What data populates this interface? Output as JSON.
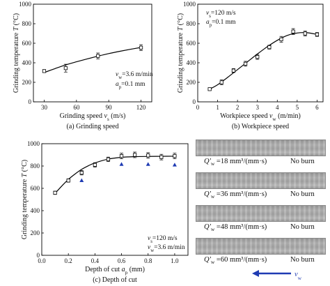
{
  "chart_data": [
    {
      "type": "line",
      "panel": "a",
      "caption": "(a) Grinding speed",
      "xlabel": "Grinding speed v_s (m/s)",
      "ylabel": "Grinding temperature T (°C)",
      "xlim": [
        20,
        130
      ],
      "ylim": [
        0,
        1000
      ],
      "xticks": [
        "30",
        "60",
        "90",
        "120"
      ],
      "yticks": [
        "0",
        "200",
        "400",
        "600",
        "800",
        "1000"
      ],
      "series": [
        {
          "x": [
            30,
            50,
            80,
            120
          ],
          "y": [
            315,
            345,
            470,
            555
          ],
          "err": [
            15,
            40,
            30,
            30
          ]
        }
      ],
      "fit": {
        "x": [
          30,
          40,
          50,
          60,
          70,
          80,
          90,
          100,
          110,
          120
        ],
        "y": [
          300,
          340,
          378,
          410,
          440,
          468,
          494,
          517,
          538,
          557
        ]
      },
      "annotation": [
        "v_w=3.6 m/min",
        "a_p=0.1 mm"
      ]
    },
    {
      "type": "line",
      "panel": "b",
      "caption": "(b) Workpiece speed",
      "xlabel": "Workpiece speed v_w (m/min)",
      "ylabel": "Grinding temperature T (°C)",
      "xlim": [
        0,
        6.3
      ],
      "ylim": [
        0,
        1000
      ],
      "xticks": [
        "0",
        "1",
        "2",
        "3",
        "4",
        "5",
        "6"
      ],
      "yticks": [
        "0",
        "200",
        "400",
        "600",
        "800",
        "1000"
      ],
      "series": [
        {
          "x": [
            0.6,
            1.2,
            1.8,
            2.4,
            3.0,
            3.6,
            4.2,
            4.8,
            5.4,
            6.0
          ],
          "y": [
            130,
            200,
            320,
            390,
            460,
            560,
            640,
            720,
            700,
            690
          ],
          "err": [
            10,
            25,
            20,
            25,
            25,
            20,
            30,
            30,
            25,
            20
          ]
        }
      ],
      "fit": {
        "x": [
          0.6,
          1.0,
          1.5,
          2.0,
          2.5,
          3.0,
          3.5,
          4.0,
          4.5,
          5.0,
          5.5,
          6.0
        ],
        "y": [
          130,
          175,
          250,
          330,
          410,
          490,
          565,
          630,
          680,
          705,
          708,
          690
        ]
      },
      "annotation": [
        "v_s=120 m/s",
        "a_p=0.1 mm"
      ]
    },
    {
      "type": "line",
      "panel": "c",
      "caption": "(c) Depth of cut",
      "xlabel": "Depth of cut a_p (mm)",
      "ylabel": "Grinding temperature T (°C)",
      "xlim": [
        0,
        1.1
      ],
      "ylim": [
        0,
        1000
      ],
      "xticks": [
        "0.0",
        "0.2",
        "0.4",
        "0.6",
        "0.8",
        "1.0"
      ],
      "yticks": [
        "0",
        "200",
        "400",
        "600",
        "800",
        "1000"
      ],
      "series": [
        {
          "marker": "square",
          "x": [
            0.1,
            0.2,
            0.3,
            0.4,
            0.5,
            0.6,
            0.7,
            0.8,
            0.9,
            1.0
          ],
          "y": [
            560,
            670,
            740,
            810,
            860,
            890,
            900,
            895,
            880,
            890
          ],
          "err": [
            15,
            15,
            20,
            20,
            20,
            25,
            25,
            25,
            25,
            25
          ]
        },
        {
          "marker": "triangle",
          "x": [
            0.3,
            0.6,
            0.8,
            1.0
          ],
          "y": [
            670,
            815,
            815,
            810
          ]
        }
      ],
      "fit": {
        "x": [
          0.1,
          0.15,
          0.2,
          0.25,
          0.3,
          0.35,
          0.4,
          0.5,
          0.6,
          0.7,
          0.8,
          0.9,
          1.0
        ],
        "y": [
          555,
          620,
          680,
          728,
          770,
          802,
          828,
          862,
          878,
          884,
          886,
          887,
          888
        ]
      },
      "annotation": [
        "v_s=120 m/s",
        "v_w=3.6 m/min"
      ]
    }
  ],
  "photos": {
    "items": [
      {
        "q": "Q'_w =18 mm³/(mm·s)",
        "status": "No burn"
      },
      {
        "q": "Q'_w =36 mm³/(mm·s)",
        "status": "No burn"
      },
      {
        "q": "Q'_w =48 mm³/(mm·s)",
        "status": "No burn"
      },
      {
        "q": "Q'_w =60 mm³/(mm·s)",
        "status": "No burn"
      }
    ],
    "arrow_label": "v_w"
  },
  "colors": {
    "line": "#000000",
    "triangle": "#1f3bb3",
    "arrow": "#1f3bb3"
  }
}
